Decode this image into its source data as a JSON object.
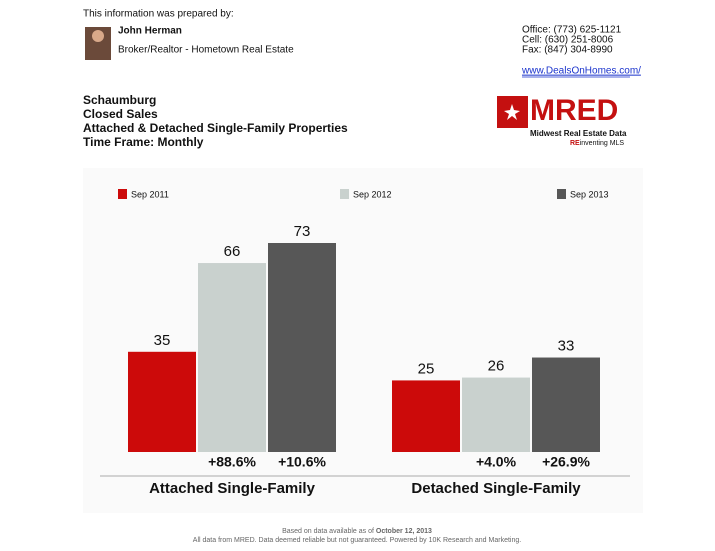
{
  "header": {
    "prepared_by": "This information was prepared by:",
    "name": "John Herman",
    "role": "Broker/Realtor - Hometown Real Estate",
    "office": "Office: (773) 625-1121",
    "cell": "Cell: (630) 251-8006",
    "fax": "Fax: (847) 304-8990",
    "website": "www.DealsOnHomes.com/"
  },
  "report": {
    "lines": [
      "Schaumburg",
      "Closed Sales",
      "Attached & Detached Single-Family Properties",
      "Time Frame: Monthly"
    ]
  },
  "logo": {
    "name": "MRED",
    "tagline": "Midwest Real Estate Data",
    "slogan_prefix": "RE",
    "slogan_rest": "inventing MLS"
  },
  "chart_data": {
    "type": "bar",
    "categories": [
      "Attached Single-Family",
      "Detached Single-Family"
    ],
    "series": [
      {
        "name": "Sep 2011",
        "color": "#cc0a0a",
        "values": [
          35,
          25
        ]
      },
      {
        "name": "Sep 2012",
        "color": "#c9d1ce",
        "values": [
          66,
          26
        ]
      },
      {
        "name": "Sep 2013",
        "color": "#575757",
        "values": [
          73,
          33
        ]
      }
    ],
    "annotations": [
      [
        "+88.6%",
        "+10.6%"
      ],
      [
        "+4.0%",
        "+26.9%"
      ]
    ]
  },
  "footer": {
    "note_prefix": "Based on data available as of",
    "note_date": "October 12, 2013",
    "disclaimer": "All data from MRED. Data deemed reliable but not guaranteed. Powered by 10K Research and Marketing."
  }
}
